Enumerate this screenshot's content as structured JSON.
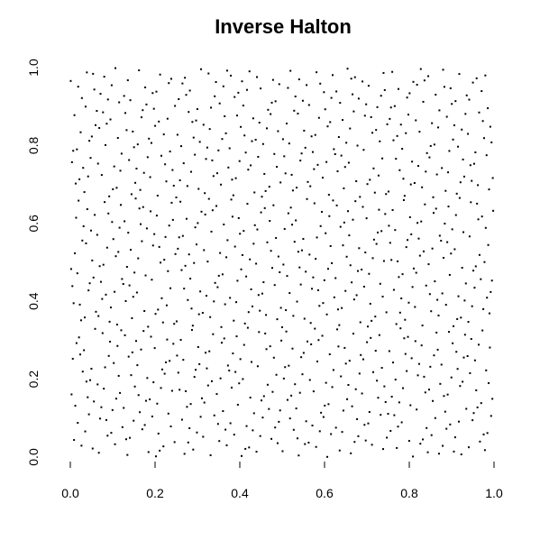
{
  "chart_data": {
    "type": "scatter",
    "title": "Inverse Halton",
    "xlabel": "",
    "ylabel": "",
    "xlim": [
      0,
      1
    ],
    "ylim": [
      0,
      1
    ],
    "x_ticks": [
      "0.0",
      "0.2",
      "0.4",
      "0.6",
      "0.8",
      "1.0"
    ],
    "y_ticks": [
      "0.0",
      "0.2",
      "0.4",
      "0.6",
      "0.8",
      "1.0"
    ],
    "grid": false,
    "axes_visible": false,
    "point_color": "#000000",
    "point_count": 1000,
    "generator": "inverse halton sequence, bases 2 and 3"
  }
}
